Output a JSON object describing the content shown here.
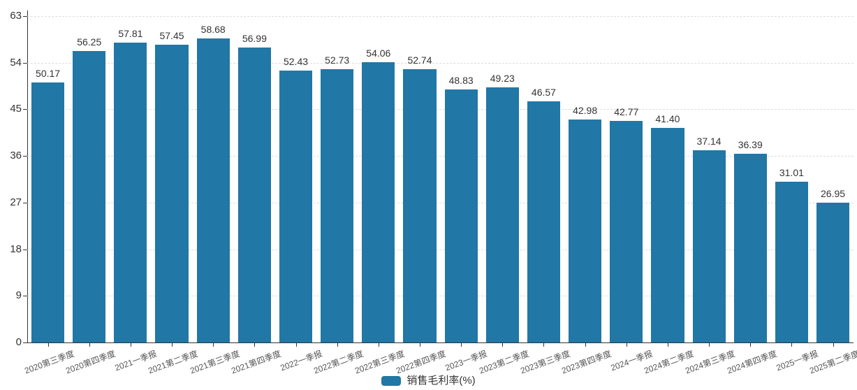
{
  "legend": {
    "label": "销售毛利率(%)",
    "swatch_color": "#2177a5"
  },
  "colors": {
    "bar": "#2177a5",
    "grid": "#dddddd",
    "axis": "#333333",
    "value_label": "#333333",
    "x_label": "#555555",
    "y_label": "#333333",
    "background": "#ffffff"
  },
  "chart_data": {
    "type": "bar",
    "title": "",
    "xlabel": "",
    "ylabel": "",
    "series_name": "销售毛利率(%)",
    "categories": [
      "2020第三季度",
      "2020第四季度",
      "2021一季报",
      "2021第二季度",
      "2021第三季度",
      "2021第四季度",
      "2022一季报",
      "2022第二季度",
      "2022第三季度",
      "2022第四季度",
      "2023一季报",
      "2023第二季度",
      "2023第三季度",
      "2023第四季度",
      "2024一季报",
      "2024第二季度",
      "2024第三季度",
      "2024第四季度",
      "2025一季报",
      "2025第二季度"
    ],
    "values": [
      50.17,
      56.25,
      57.81,
      57.45,
      58.68,
      56.99,
      52.43,
      52.73,
      54.06,
      52.74,
      48.83,
      49.23,
      46.57,
      42.98,
      42.77,
      41.4,
      37.14,
      36.39,
      31.01,
      26.95
    ],
    "value_labels": [
      "50.17",
      "56.25",
      "57.81",
      "57.45",
      "58.68",
      "56.99",
      "52.43",
      "52.73",
      "54.06",
      "52.74",
      "48.83",
      "49.23",
      "46.57",
      "42.98",
      "42.77",
      "41.40",
      "37.14",
      "36.39",
      "31.01",
      "26.95"
    ],
    "ylim": [
      0,
      63
    ],
    "yticks": [
      0,
      9,
      18,
      27,
      36,
      45,
      54,
      63
    ],
    "grid": "horizontal-dashed",
    "legend_position": "bottom-center"
  }
}
